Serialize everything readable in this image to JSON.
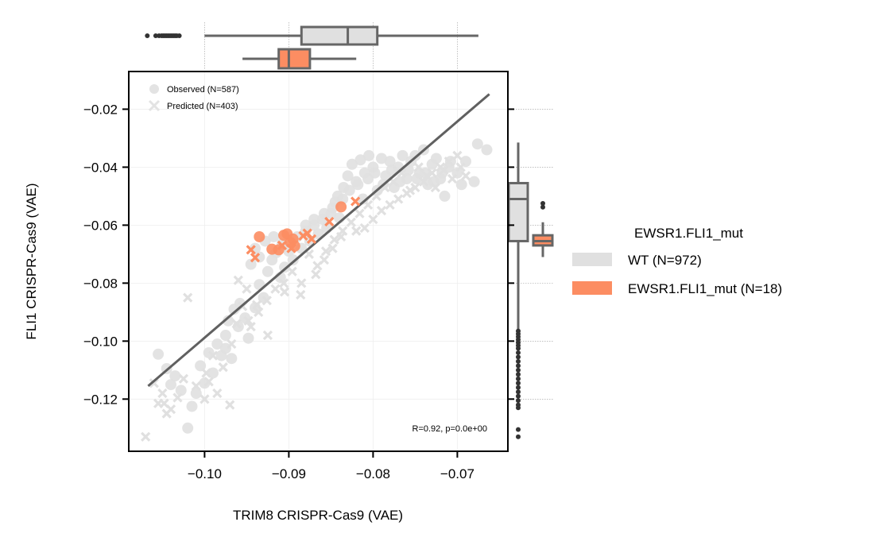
{
  "chart_data": {
    "type": "scatter",
    "xlabel": "TRIM8 CRISPR-Cas9 (VAE)",
    "ylabel": "FLI1 CRISPR-Cas9 (VAE)",
    "xlim": [
      -0.109,
      -0.064
    ],
    "ylim": [
      -0.138,
      -0.007
    ],
    "x_ticks": [
      -0.1,
      -0.09,
      -0.08,
      -0.07
    ],
    "x_tick_labels": [
      "−0.10",
      "−0.09",
      "−0.08",
      "−0.07"
    ],
    "y_ticks": [
      -0.02,
      -0.04,
      -0.06,
      -0.08,
      -0.1,
      -0.12
    ],
    "y_tick_labels": [
      "−0.02",
      "−0.04",
      "−0.06",
      "−0.08",
      "−0.10",
      "−0.12"
    ],
    "grid": true,
    "annotation": "R=0.92, p=0.0e+00",
    "marker_legend": [
      {
        "label": "Observed (N=587)",
        "marker": "circle"
      },
      {
        "label": "Predicted (N=403)",
        "marker": "x"
      }
    ],
    "group_legend": {
      "title": "EWSR1.FLI1_mut",
      "placement": "right",
      "entries": [
        {
          "label": "WT (N=972)",
          "color": "#e0e0e0"
        },
        {
          "label": "EWSR1.FLI1_mut (N=18)",
          "color": "#fc8d62"
        }
      ]
    },
    "colors": {
      "wt": "#e0e0e0",
      "mut": "#fc8d62",
      "regression": "#606060",
      "box_edge": "#666666"
    },
    "regression_line": {
      "x": [
        -0.1067,
        -0.0662
      ],
      "y": [
        -0.1155,
        -0.0148
      ]
    },
    "series": [
      {
        "name": "WT (N=972)",
        "color": "#e0e0e0",
        "observed_points": [
          [
            -0.1055,
            -0.1045
          ],
          [
            -0.1045,
            -0.1095
          ],
          [
            -0.1035,
            -0.112
          ],
          [
            -0.102,
            -0.13
          ],
          [
            -0.1015,
            -0.1225
          ],
          [
            -0.1005,
            -0.1085
          ],
          [
            -0.1,
            -0.1145
          ],
          [
            -0.0995,
            -0.104
          ],
          [
            -0.0985,
            -0.101
          ],
          [
            -0.0975,
            -0.098
          ],
          [
            -0.0968,
            -0.106
          ],
          [
            -0.096,
            -0.095
          ],
          [
            -0.0952,
            -0.092
          ],
          [
            -0.0948,
            -0.099
          ],
          [
            -0.094,
            -0.0885
          ],
          [
            -0.0935,
            -0.0805
          ],
          [
            -0.093,
            -0.085
          ],
          [
            -0.0925,
            -0.076
          ],
          [
            -0.092,
            -0.072
          ],
          [
            -0.0915,
            -0.0695
          ],
          [
            -0.091,
            -0.078
          ],
          [
            -0.0905,
            -0.0745
          ],
          [
            -0.09,
            -0.069
          ],
          [
            -0.0895,
            -0.072
          ],
          [
            -0.089,
            -0.064
          ],
          [
            -0.0885,
            -0.068
          ],
          [
            -0.088,
            -0.062
          ],
          [
            -0.0875,
            -0.0655
          ],
          [
            -0.087,
            -0.06
          ],
          [
            -0.0865,
            -0.063
          ],
          [
            -0.086,
            -0.058
          ],
          [
            -0.0855,
            -0.061
          ],
          [
            -0.085,
            -0.056
          ],
          [
            -0.0845,
            -0.052
          ],
          [
            -0.084,
            -0.0575
          ],
          [
            -0.0835,
            -0.047
          ],
          [
            -0.083,
            -0.043
          ],
          [
            -0.0825,
            -0.039
          ],
          [
            -0.082,
            -0.045
          ],
          [
            -0.0815,
            -0.0375
          ],
          [
            -0.081,
            -0.042
          ],
          [
            -0.0805,
            -0.036
          ],
          [
            -0.08,
            -0.04
          ],
          [
            -0.0795,
            -0.048
          ],
          [
            -0.079,
            -0.037
          ],
          [
            -0.0785,
            -0.043
          ],
          [
            -0.078,
            -0.038
          ],
          [
            -0.0775,
            -0.047
          ],
          [
            -0.077,
            -0.04
          ],
          [
            -0.0765,
            -0.036
          ],
          [
            -0.076,
            -0.044
          ],
          [
            -0.0755,
            -0.038
          ],
          [
            -0.075,
            -0.036
          ],
          [
            -0.0745,
            -0.042
          ],
          [
            -0.074,
            -0.034
          ],
          [
            -0.0735,
            -0.046
          ],
          [
            -0.073,
            -0.039
          ],
          [
            -0.0725,
            -0.037
          ],
          [
            -0.072,
            -0.044
          ],
          [
            -0.0715,
            -0.05
          ],
          [
            -0.071,
            -0.04
          ],
          [
            -0.07,
            -0.042
          ],
          [
            -0.069,
            -0.038
          ],
          [
            -0.068,
            -0.045
          ],
          [
            -0.0676,
            -0.032
          ],
          [
            -0.0665,
            -0.034
          ],
          [
            -0.094,
            -0.068
          ],
          [
            -0.0935,
            -0.071
          ],
          [
            -0.0945,
            -0.0735
          ],
          [
            -0.0928,
            -0.0655
          ],
          [
            -0.0918,
            -0.064
          ],
          [
            -0.0908,
            -0.0665
          ],
          [
            -0.088,
            -0.06
          ],
          [
            -0.087,
            -0.058
          ],
          [
            -0.0858,
            -0.056
          ],
          [
            -0.0848,
            -0.054
          ],
          [
            -0.0842,
            -0.05
          ],
          [
            -0.0836,
            -0.051
          ],
          [
            -0.0828,
            -0.048
          ],
          [
            -0.0818,
            -0.046
          ],
          [
            -0.0812,
            -0.051
          ],
          [
            -0.0806,
            -0.044
          ],
          [
            -0.0798,
            -0.042
          ],
          [
            -0.0788,
            -0.046
          ],
          [
            -0.0778,
            -0.041
          ],
          [
            -0.0768,
            -0.045
          ],
          [
            -0.0758,
            -0.041
          ],
          [
            -0.0748,
            -0.044
          ],
          [
            -0.0738,
            -0.042
          ],
          [
            -0.0728,
            -0.045
          ],
          [
            -0.0718,
            -0.042
          ],
          [
            -0.0708,
            -0.038
          ],
          [
            -0.0695,
            -0.046
          ],
          [
            -0.0965,
            -0.089
          ],
          [
            -0.0972,
            -0.093
          ],
          [
            -0.0958,
            -0.087
          ],
          [
            -0.101,
            -0.118
          ],
          [
            -0.1028,
            -0.117
          ],
          [
            -0.104,
            -0.115
          ],
          [
            -0.099,
            -0.111
          ],
          [
            -0.098,
            -0.105
          ],
          [
            -0.0975,
            -0.1025
          ]
        ],
        "predicted_points": [
          [
            -0.107,
            -0.133
          ],
          [
            -0.106,
            -0.1145
          ],
          [
            -0.105,
            -0.118
          ],
          [
            -0.1048,
            -0.1215
          ],
          [
            -0.104,
            -0.1235
          ],
          [
            -0.1032,
            -0.1195
          ],
          [
            -0.1025,
            -0.113
          ],
          [
            -0.101,
            -0.1155
          ],
          [
            -0.0998,
            -0.111
          ],
          [
            -0.099,
            -0.105
          ],
          [
            -0.0978,
            -0.109
          ],
          [
            -0.097,
            -0.122
          ],
          [
            -0.0962,
            -0.094
          ],
          [
            -0.0955,
            -0.088
          ],
          [
            -0.0945,
            -0.095
          ],
          [
            -0.0936,
            -0.09
          ],
          [
            -0.0926,
            -0.086
          ],
          [
            -0.0916,
            -0.082
          ],
          [
            -0.0906,
            -0.08
          ],
          [
            -0.0896,
            -0.076
          ],
          [
            -0.0886,
            -0.084
          ],
          [
            -0.0876,
            -0.07
          ],
          [
            -0.0866,
            -0.074
          ],
          [
            -0.0856,
            -0.069
          ],
          [
            -0.0846,
            -0.065
          ],
          [
            -0.0836,
            -0.062
          ],
          [
            -0.0826,
            -0.059
          ],
          [
            -0.0816,
            -0.056
          ],
          [
            -0.0806,
            -0.053
          ],
          [
            -0.0796,
            -0.05
          ],
          [
            -0.0786,
            -0.047
          ],
          [
            -0.0776,
            -0.045
          ],
          [
            -0.0766,
            -0.042
          ],
          [
            -0.0756,
            -0.048
          ],
          [
            -0.0746,
            -0.04
          ],
          [
            -0.0736,
            -0.043
          ],
          [
            -0.0726,
            -0.047
          ],
          [
            -0.0716,
            -0.041
          ],
          [
            -0.0706,
            -0.044
          ],
          [
            -0.0696,
            -0.04
          ],
          [
            -0.102,
            -0.085
          ],
          [
            -0.0925,
            -0.098
          ],
          [
            -0.0905,
            -0.083
          ],
          [
            -0.0885,
            -0.08
          ],
          [
            -0.095,
            -0.082
          ],
          [
            -0.096,
            -0.079
          ],
          [
            -0.082,
            -0.062
          ],
          [
            -0.081,
            -0.061
          ],
          [
            -0.08,
            -0.058
          ],
          [
            -0.079,
            -0.055
          ],
          [
            -0.078,
            -0.053
          ],
          [
            -0.077,
            -0.051
          ],
          [
            -0.076,
            -0.049
          ],
          [
            -0.075,
            -0.047
          ],
          [
            -0.074,
            -0.045
          ],
          [
            -0.073,
            -0.042
          ],
          [
            -0.072,
            -0.04
          ],
          [
            -0.071,
            -0.038
          ],
          [
            -0.07,
            -0.036
          ],
          [
            -0.069,
            -0.043
          ],
          [
            -0.0985,
            -0.118
          ],
          [
            -0.1,
            -0.12
          ],
          [
            -0.1045,
            -0.125
          ],
          [
            -0.1055,
            -0.1215
          ],
          [
            -0.0995,
            -0.114
          ],
          [
            -0.0968,
            -0.101
          ],
          [
            -0.0948,
            -0.093
          ],
          [
            -0.0938,
            -0.0875
          ],
          [
            -0.0868,
            -0.077
          ],
          [
            -0.0858,
            -0.072
          ],
          [
            -0.0848,
            -0.068
          ],
          [
            -0.0838,
            -0.064
          ]
        ]
      },
      {
        "name": "EWSR1.FLI1_mut (N=18)",
        "color": "#fc8d62",
        "observed_points": [
          [
            -0.0935,
            -0.064
          ],
          [
            -0.092,
            -0.0683
          ],
          [
            -0.0912,
            -0.0685
          ],
          [
            -0.0906,
            -0.0635
          ],
          [
            -0.0902,
            -0.063
          ],
          [
            -0.0898,
            -0.066
          ],
          [
            -0.0895,
            -0.0648
          ],
          [
            -0.0893,
            -0.0672
          ],
          [
            -0.0838,
            -0.0537
          ]
        ],
        "predicted_points": [
          [
            -0.0945,
            -0.0685
          ],
          [
            -0.094,
            -0.0712
          ],
          [
            -0.0908,
            -0.067
          ],
          [
            -0.0897,
            -0.068
          ],
          [
            -0.0883,
            -0.0637
          ],
          [
            -0.0878,
            -0.0628
          ],
          [
            -0.0873,
            -0.0648
          ],
          [
            -0.0852,
            -0.0588
          ],
          [
            -0.0821,
            -0.0518
          ]
        ]
      }
    ],
    "marginal_x_boxplots": [
      {
        "group": "WT (N=972)",
        "color": "#e0e0e0",
        "whisker_low": -0.1,
        "q1": -0.0885,
        "median": -0.083,
        "q3": -0.0795,
        "whisker_high": -0.0675,
        "outliers": [
          -0.1068,
          -0.1058,
          -0.1054,
          -0.1051,
          -0.1049,
          -0.1047,
          -0.1045,
          -0.1043,
          -0.1041,
          -0.1039,
          -0.1037,
          -0.1035,
          -0.1033,
          -0.103
        ]
      },
      {
        "group": "EWSR1.FLI1_mut (N=18)",
        "color": "#fc8d62",
        "whisker_low": -0.0955,
        "q1": -0.0912,
        "median": -0.09,
        "q3": -0.0875,
        "whisker_high": -0.082,
        "outliers": []
      }
    ],
    "marginal_y_boxplots": [
      {
        "group": "WT (N=972)",
        "color": "#e0e0e0",
        "whisker_low": -0.096,
        "q1": -0.0655,
        "median": -0.051,
        "q3": -0.0455,
        "whisker_high": -0.0315,
        "outliers": [
          -0.0965,
          -0.0975,
          -0.0985,
          -0.0995,
          -0.1005,
          -0.1015,
          -0.1025,
          -0.104,
          -0.1055,
          -0.107,
          -0.1085,
          -0.11,
          -0.1115,
          -0.113,
          -0.1145,
          -0.116,
          -0.1175,
          -0.119,
          -0.1205,
          -0.122,
          -0.123,
          -0.1305,
          -0.133
        ]
      },
      {
        "group": "EWSR1.FLI1_mut (N=18)",
        "color": "#fc8d62",
        "whisker_low": -0.071,
        "q1": -0.067,
        "median": -0.0655,
        "q3": -0.0635,
        "whisker_high": -0.059,
        "outliers": [
          -0.0525,
          -0.0538
        ]
      }
    ]
  }
}
